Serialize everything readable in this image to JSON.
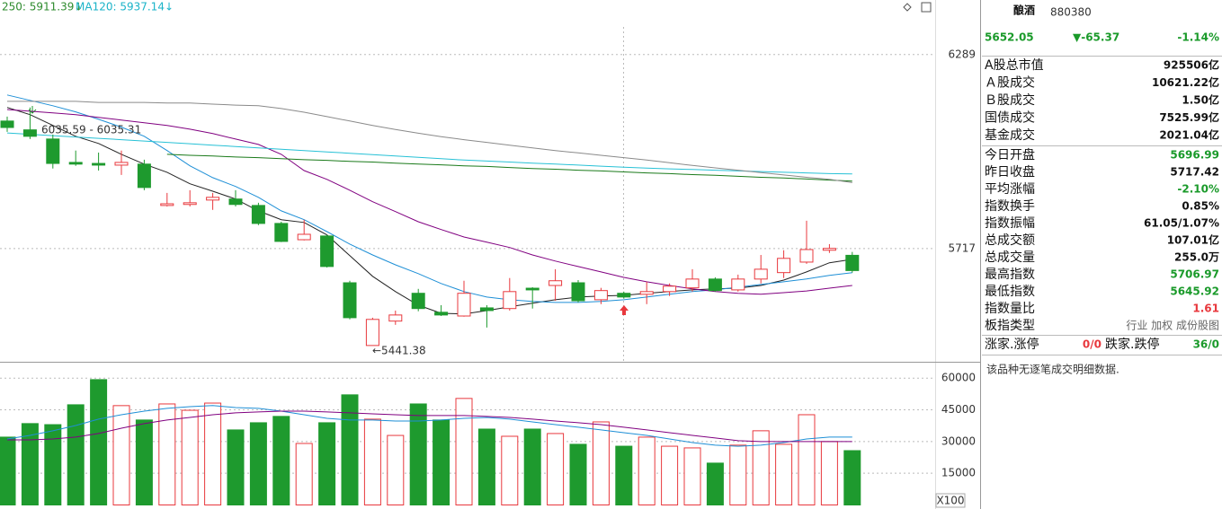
{
  "chart_data": [
    {
      "type": "candlestick",
      "up_color": "#e8383d",
      "down_color": "#1e9a2e",
      "ylim": [
        5383,
        6450
      ],
      "yticks": [
        5717,
        6289
      ],
      "grid": true,
      "open": [
        6093,
        6067,
        6040,
        5971,
        5968,
        5963,
        5966,
        5844,
        5847,
        5860,
        5863,
        5844,
        5791,
        5743,
        5754,
        5616,
        5431,
        5503,
        5585,
        5529,
        5518,
        5542,
        5540,
        5600,
        5608,
        5616,
        5566,
        5585,
        5582,
        5590,
        5601,
        5627,
        5595,
        5627,
        5646,
        5677,
        5712,
        5696.99
      ],
      "high": [
        6106,
        6133,
        6053,
        6006,
        6000,
        6006,
        5979,
        5881,
        5889,
        5881,
        5889,
        5852,
        5796,
        5802,
        5757,
        5622,
        5513,
        5534,
        5598,
        5550,
        5622,
        5550,
        5630,
        5603,
        5656,
        5624,
        5601,
        5590,
        5619,
        5614,
        5656,
        5632,
        5640,
        5698,
        5712,
        5799,
        5730,
        5706.97
      ],
      "low": [
        6061,
        6040,
        5953,
        5961,
        5947,
        5934,
        5889,
        5841,
        5841,
        5831,
        5841,
        5786,
        5736,
        5741,
        5661,
        5508,
        5441.38,
        5492,
        5532,
        5518,
        5516,
        5484,
        5534,
        5540,
        5563,
        5558,
        5553,
        5569,
        5553,
        5577,
        5590,
        5590,
        5590,
        5614,
        5630,
        5672,
        5704,
        5645.92
      ],
      "close": [
        6074,
        6048,
        5968,
        5966,
        5963,
        5971,
        5897,
        5849,
        5852,
        5868,
        5847,
        5791,
        5738,
        5759,
        5664,
        5513,
        5508,
        5521,
        5540,
        5521,
        5585,
        5534,
        5590,
        5595,
        5622,
        5563,
        5593,
        5574,
        5590,
        5606,
        5627,
        5593,
        5627,
        5656,
        5688,
        5714,
        5717.42,
        5652.05
      ],
      "lines": [
        {
          "color": "#222222",
          "values": [
            6133,
            6112,
            6080,
            6048,
            6027,
            5995,
            5966,
            5942,
            5908,
            5886,
            5863,
            5828,
            5802,
            5794,
            5757,
            5696,
            5635,
            5590,
            5550,
            5526,
            5524,
            5534,
            5545,
            5556,
            5566,
            5574,
            5577,
            5579,
            5585,
            5590,
            5595,
            5598,
            5600,
            5608,
            5624,
            5648,
            5675,
            5685
          ]
        },
        {
          "color": "#1e8fd6",
          "values": [
            6170,
            6154,
            6138,
            6120,
            6098,
            6075,
            6048,
            6006,
            5961,
            5926,
            5900,
            5868,
            5828,
            5802,
            5767,
            5730,
            5698,
            5669,
            5643,
            5614,
            5590,
            5574,
            5566,
            5561,
            5558,
            5558,
            5561,
            5566,
            5574,
            5582,
            5590,
            5595,
            5603,
            5611,
            5619,
            5627,
            5638,
            5646
          ]
        },
        {
          "color": "#800080",
          "values": [
            6127,
            6122,
            6117,
            6112,
            6104,
            6096,
            6088,
            6080,
            6069,
            6056,
            6040,
            6024,
            5995,
            5947,
            5921,
            5889,
            5855,
            5826,
            5796,
            5773,
            5751,
            5736,
            5720,
            5698,
            5680,
            5664,
            5648,
            5632,
            5619,
            5608,
            5598,
            5590,
            5585,
            5582,
            5587,
            5592,
            5600,
            5608
          ]
        },
        {
          "color": "#1a7a1a",
          "values": [
            null,
            null,
            null,
            null,
            null,
            null,
            null,
            5995,
            5992,
            5990,
            5987,
            5985,
            5982,
            5979,
            5977,
            5974,
            5972,
            5969,
            5966,
            5964,
            5961,
            5959,
            5956,
            5953,
            5951,
            5948,
            5946,
            5943,
            5940,
            5938,
            5935,
            5933,
            5930,
            5927,
            5925,
            5922,
            5919,
            5916
          ]
        },
        {
          "color": "#27c1d6",
          "values": [
            6058,
            6054,
            6050,
            6046,
            6042,
            6038,
            6034,
            6030,
            6026,
            6022,
            6018,
            6014,
            6010,
            6006,
            6002,
            5998,
            5994,
            5990,
            5986,
            5982,
            5978,
            5975,
            5972,
            5969,
            5966,
            5963,
            5960,
            5957,
            5954,
            5952,
            5950,
            5948,
            5946,
            5944,
            5942,
            5940,
            5938,
            5937.14
          ]
        },
        {
          "color": "#8a8a8a",
          "values": [
            6151,
            6151,
            6151,
            6151,
            6148,
            6148,
            6148,
            6146,
            6146,
            6143,
            6140,
            6138,
            6130,
            6119,
            6106,
            6093,
            6080,
            6068,
            6057,
            6047,
            6038,
            6030,
            6022,
            6014,
            6006,
            5999,
            5992,
            5985,
            5978,
            5970,
            5962,
            5955,
            5948,
            5941,
            5934,
            5927,
            5921,
            5911.39
          ]
        }
      ],
      "legend": [
        {
          "text": "250: 5911.39↓",
          "color": "#2e8b2e"
        },
        {
          "text": "MA120: 5937.14↓",
          "color": "#1ab3c8"
        }
      ],
      "annotations": [
        "6035.59 - 6035.31",
        "←5441.38"
      ]
    },
    {
      "type": "bar",
      "ylim": [
        0,
        66900
      ],
      "yticks": [
        15000,
        30000,
        45000,
        60000
      ],
      "unit": "X100",
      "values": [
        32100,
        38500,
        38000,
        47400,
        59300,
        47000,
        40200,
        47800,
        44800,
        48200,
        35500,
        38900,
        41900,
        29100,
        38900,
        52100,
        40600,
        32900,
        47800,
        40200,
        50400,
        35900,
        32500,
        35900,
        33800,
        28700,
        39300,
        27800,
        32100,
        27800,
        27000,
        19800,
        28300,
        35100,
        28700,
        42700,
        30000,
        25700
      ],
      "lines": [
        {
          "color": "#1e8fd6",
          "values": [
            31200,
            32900,
            35100,
            37600,
            40600,
            42700,
            44400,
            45700,
            46500,
            47000,
            46100,
            45700,
            44400,
            42700,
            41000,
            40200,
            40200,
            39700,
            39700,
            40200,
            41000,
            41400,
            40600,
            39300,
            38000,
            36800,
            35500,
            34200,
            32900,
            31200,
            29500,
            28300,
            27800,
            28300,
            29500,
            31200,
            32100,
            32100
          ]
        },
        {
          "color": "#800080",
          "values": [
            30800,
            30800,
            31200,
            32100,
            33800,
            36300,
            38500,
            40200,
            41400,
            42700,
            43600,
            44000,
            44400,
            44400,
            44000,
            43600,
            43100,
            42700,
            42300,
            42300,
            42300,
            41900,
            41400,
            40600,
            39700,
            38900,
            38000,
            36800,
            35500,
            34200,
            32900,
            31700,
            30400,
            30000,
            30000,
            30000,
            30000,
            30000
          ]
        }
      ]
    }
  ],
  "panel": {
    "name": "酿酒",
    "code": "880380",
    "price": "5652.05",
    "change": "▼-65.37",
    "change_pct": "-1.14%",
    "color": "#1a9a2a",
    "rows": [
      {
        "label": "A股总市值",
        "value": "925506亿",
        "color": "#111111"
      },
      {
        "label": "Ａ股成交",
        "value": "10621.22亿",
        "color": "#111111"
      },
      {
        "label": "Ｂ股成交",
        "value": "1.50亿",
        "color": "#111111"
      },
      {
        "label": "国债成交",
        "value": "7525.99亿",
        "color": "#111111"
      },
      {
        "label": "基金成交",
        "value": "2021.04亿",
        "color": "#111111"
      },
      {
        "label": "今日开盘",
        "value": "5696.99",
        "color": "#1a9a2a"
      },
      {
        "label": "昨日收盘",
        "value": "5717.42",
        "color": "#111111"
      },
      {
        "label": "平均涨幅",
        "value": "-2.10%",
        "color": "#1a9a2a"
      },
      {
        "label": "指数换手",
        "value": "0.85%",
        "color": "#111111"
      },
      {
        "label": "指数振幅",
        "value": "61.05/1.07%",
        "color": "#111111"
      },
      {
        "label": "总成交额",
        "value": "107.01亿",
        "color": "#111111"
      },
      {
        "label": "总成交量",
        "value": "255.0万",
        "color": "#111111"
      },
      {
        "label": "最高指数",
        "value": "5706.97",
        "color": "#1a9a2a"
      },
      {
        "label": "最低指数",
        "value": "5645.92",
        "color": "#1a9a2a"
      },
      {
        "label": "指数量比",
        "value": "1.61",
        "color": "#e8383d"
      },
      {
        "label": "板指类型",
        "value": "行业 加权 成份股图",
        "color": "#666666"
      }
    ],
    "breadth": {
      "up_label": "涨家.涨停",
      "up_value": "0/0",
      "up_color": "#e8383d",
      "down_label": "跌家.跌停",
      "down_value": "36/0",
      "down_color": "#1a9a2a"
    },
    "note": "该品种无逐笔成交明细数据."
  }
}
